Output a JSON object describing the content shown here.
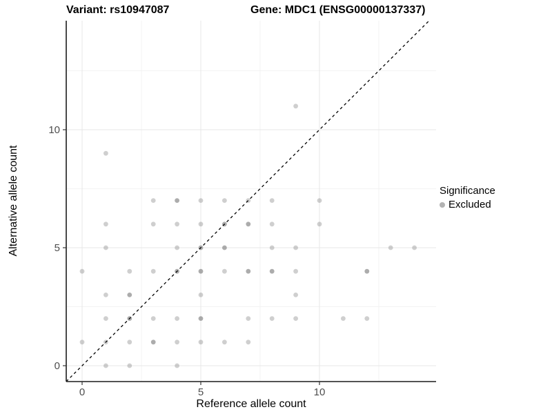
{
  "titles": {
    "left": "Variant: rs10947087",
    "right": "Gene: MDC1 (ENSG00000137337)"
  },
  "axes": {
    "x_label": "Reference allele count",
    "y_label": "Alternative allele count"
  },
  "legend": {
    "title": "Significance",
    "items": [
      {
        "label": "Excluded",
        "color": "#b3b3b3"
      }
    ]
  },
  "chart_data": {
    "type": "scatter",
    "title": "Variant: rs10947087   Gene: MDC1 (ENSG00000137337)",
    "xlabel": "Reference allele count",
    "ylabel": "Alternative allele count",
    "xlim": [
      -0.67,
      14.91
    ],
    "ylim": [
      -0.67,
      14.62
    ],
    "x_major_ticks": [
      0,
      5,
      10
    ],
    "y_major_ticks": [
      0,
      5,
      10
    ],
    "x_minor_ticks": [
      2.5,
      7.5,
      12.5
    ],
    "y_minor_ticks": [
      2.5,
      7.5,
      12.5
    ],
    "grid": true,
    "legend_position": "right",
    "abline": {
      "slope": 1,
      "intercept": 0,
      "style": "dashed",
      "color": "#000000"
    },
    "colors": {
      "point": "#8c8c8c",
      "point_opacity": 0.42,
      "point_opacity_dark": 0.72,
      "grid_major": "#e7e7e7",
      "grid_minor": "#f3f3f3",
      "axis_line": "#1a1a1a",
      "tick_label": "#4d4d4d"
    },
    "point_radius": 3.4,
    "points": [
      {
        "x": 1,
        "y": 0
      },
      {
        "x": 2,
        "y": 0
      },
      {
        "x": 4,
        "y": 0
      },
      {
        "x": 0,
        "y": 1
      },
      {
        "x": 1,
        "y": 1
      },
      {
        "x": 2,
        "y": 1
      },
      {
        "x": 3,
        "y": 1,
        "d": 1
      },
      {
        "x": 4,
        "y": 1
      },
      {
        "x": 5,
        "y": 1
      },
      {
        "x": 6,
        "y": 1
      },
      {
        "x": 7,
        "y": 1
      },
      {
        "x": 1,
        "y": 2
      },
      {
        "x": 2,
        "y": 2,
        "d": 1
      },
      {
        "x": 3,
        "y": 2
      },
      {
        "x": 4,
        "y": 2
      },
      {
        "x": 5,
        "y": 2,
        "d": 1
      },
      {
        "x": 7,
        "y": 2
      },
      {
        "x": 8,
        "y": 2
      },
      {
        "x": 9,
        "y": 2
      },
      {
        "x": 11,
        "y": 2
      },
      {
        "x": 12,
        "y": 2
      },
      {
        "x": 1,
        "y": 3
      },
      {
        "x": 2,
        "y": 3,
        "d": 1
      },
      {
        "x": 5,
        "y": 3
      },
      {
        "x": 9,
        "y": 3
      },
      {
        "x": 0,
        "y": 4
      },
      {
        "x": 2,
        "y": 4
      },
      {
        "x": 3,
        "y": 4
      },
      {
        "x": 4,
        "y": 4,
        "d": 1
      },
      {
        "x": 5,
        "y": 4,
        "d": 1
      },
      {
        "x": 6,
        "y": 4
      },
      {
        "x": 7,
        "y": 4,
        "d": 1
      },
      {
        "x": 8,
        "y": 4,
        "d": 1
      },
      {
        "x": 9,
        "y": 4
      },
      {
        "x": 12,
        "y": 4,
        "d": 1
      },
      {
        "x": 1,
        "y": 5
      },
      {
        "x": 4,
        "y": 5
      },
      {
        "x": 5,
        "y": 5,
        "d": 1
      },
      {
        "x": 6,
        "y": 5,
        "d": 1
      },
      {
        "x": 8,
        "y": 5
      },
      {
        "x": 9,
        "y": 5
      },
      {
        "x": 13,
        "y": 5
      },
      {
        "x": 14,
        "y": 5
      },
      {
        "x": 1,
        "y": 6
      },
      {
        "x": 3,
        "y": 6
      },
      {
        "x": 4,
        "y": 6
      },
      {
        "x": 5,
        "y": 6
      },
      {
        "x": 6,
        "y": 6,
        "d": 1
      },
      {
        "x": 7,
        "y": 6,
        "d": 1
      },
      {
        "x": 8,
        "y": 6
      },
      {
        "x": 10,
        "y": 6
      },
      {
        "x": 3,
        "y": 7
      },
      {
        "x": 4,
        "y": 7,
        "d": 1
      },
      {
        "x": 5,
        "y": 7
      },
      {
        "x": 6,
        "y": 7
      },
      {
        "x": 7,
        "y": 7
      },
      {
        "x": 8,
        "y": 7
      },
      {
        "x": 10,
        "y": 7
      },
      {
        "x": 1,
        "y": 9
      },
      {
        "x": 9,
        "y": 11
      }
    ]
  }
}
